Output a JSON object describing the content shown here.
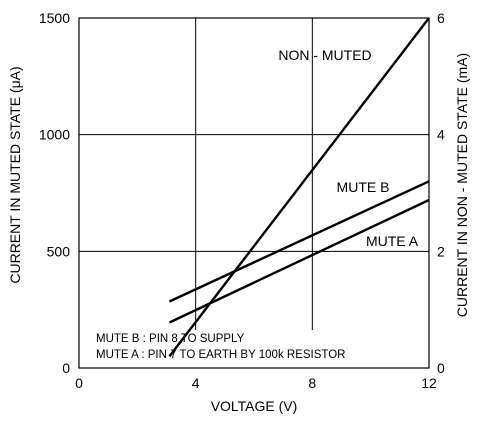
{
  "chart_data": {
    "type": "line",
    "xlabel": "VOLTAGE (V)",
    "ylabel_left": "CURRENT IN MUTED STATE (μA)",
    "ylabel_right": "CURRENT IN NON - MUTED STATE (mA)",
    "xlim": [
      0,
      12
    ],
    "ylim_left": [
      0,
      1500
    ],
    "ylim_right": [
      0,
      6
    ],
    "x_ticks": [
      0,
      4,
      8,
      12
    ],
    "y_ticks_left": [
      0,
      500,
      1000,
      1500
    ],
    "y_ticks_right": [
      0,
      2,
      4,
      6
    ],
    "grid": true,
    "series": [
      {
        "name": "NON - MUTED",
        "axis": "right",
        "x": [
          3.1,
          12
        ],
        "y": [
          0.2,
          6.0
        ]
      },
      {
        "name": "MUTE B",
        "axis": "left",
        "x": [
          3.1,
          12
        ],
        "y": [
          285,
          800
        ]
      },
      {
        "name": "MUTE A",
        "axis": "left",
        "x": [
          3.1,
          12
        ],
        "y": [
          195,
          720
        ]
      }
    ],
    "annotations": [
      "MUTE B : PIN 8 TO SUPPLY",
      "MUTE A : PIN 7 TO EARTH BY 100k RESISTOR"
    ]
  }
}
